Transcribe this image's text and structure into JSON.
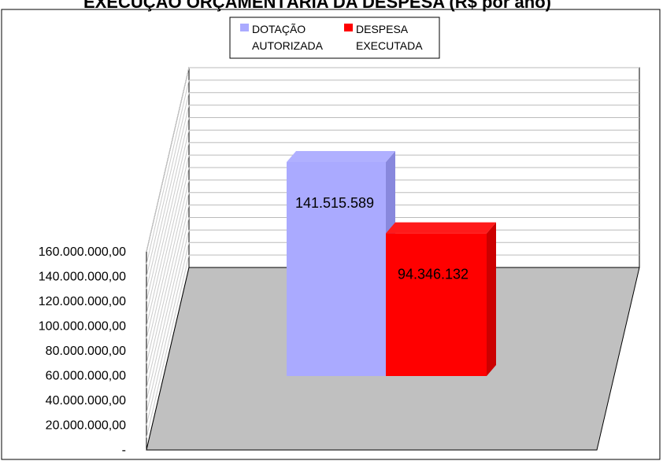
{
  "title": "EXECUÇÃO ORÇAMENTÁRIA DA DESPESA (R$ por ano)",
  "chart_data": {
    "type": "bar",
    "series": [
      {
        "name": [
          "DOTAÇÃO",
          "AUTORIZADA"
        ],
        "value": 141515589,
        "label": "141.515.589",
        "color": "#aaaaff"
      },
      {
        "name": [
          "DESPESA",
          "EXECUTADA"
        ],
        "value": 94346132,
        "label": "94.346.132",
        "color": "#ff0000"
      }
    ],
    "y_ticks": [
      "-",
      "20.000.000,00",
      "40.000.000,00",
      "60.000.000,00",
      "80.000.000,00",
      "100.000.000,00",
      "120.000.000,00",
      "140.000.000,00",
      "160.000.000,00"
    ],
    "ylim": [
      0,
      160000000
    ],
    "grid": true,
    "legend_position": "top-center",
    "floor_color": "#c0c0c0"
  }
}
